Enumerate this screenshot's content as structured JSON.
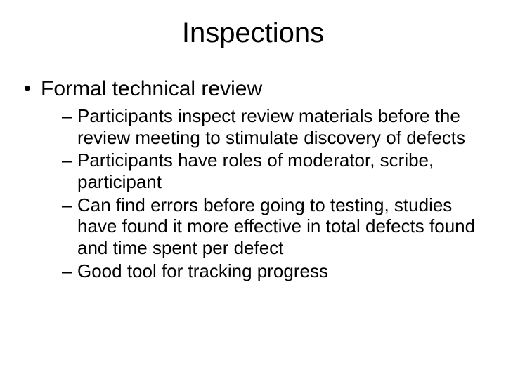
{
  "slide": {
    "title": "Inspections",
    "bullet1": {
      "text": "Formal technical review",
      "subitems": [
        "Participants inspect review materials before the review meeting to stimulate discovery of defects",
        "Participants have roles of moderator, scribe, participant",
        "Can find errors before going to testing, studies have found it more effective in total defects found and time spent per defect",
        "Good tool for tracking progress"
      ]
    }
  },
  "colors": {
    "background": "#ffffff",
    "text": "#000000"
  },
  "typography": {
    "title_fontsize": 40,
    "level1_fontsize": 30,
    "level2_fontsize": 26,
    "font_family": "Arial"
  }
}
